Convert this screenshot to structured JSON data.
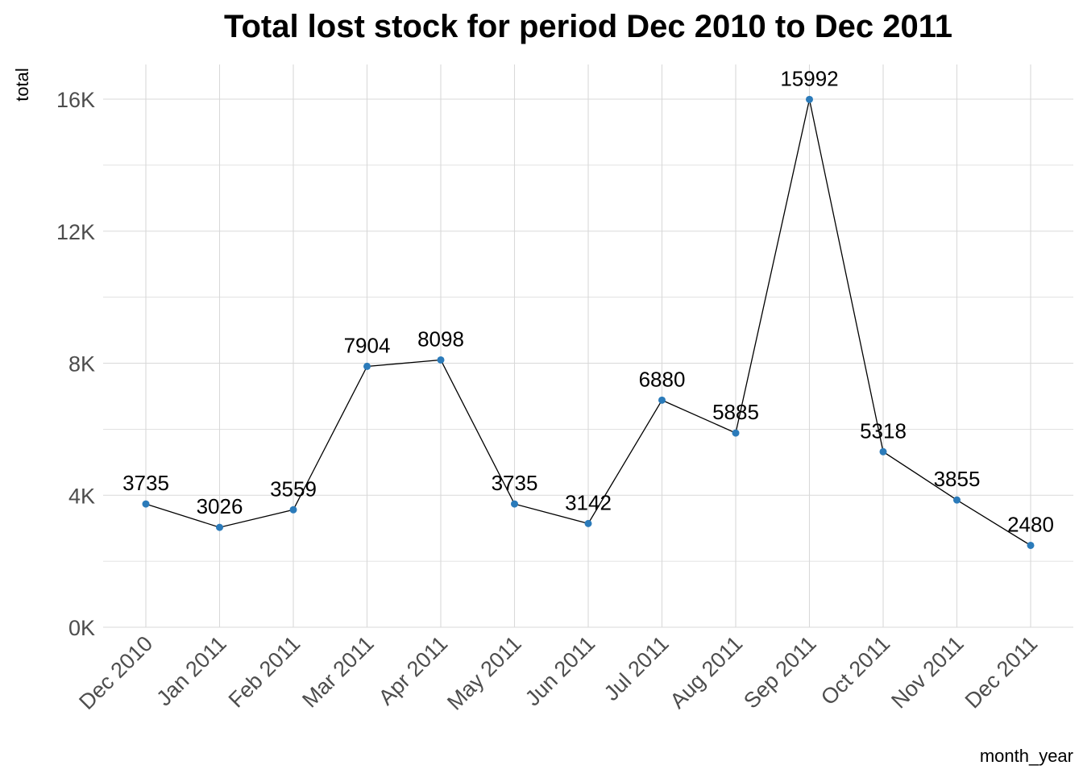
{
  "chart_data": {
    "type": "line",
    "title": "Total lost stock for period Dec 2010 to Dec 2011",
    "xlabel": "month_year",
    "ylabel": "total",
    "categories": [
      "Dec 2010",
      "Jan 2011",
      "Feb 2011",
      "Mar 2011",
      "Apr 2011",
      "May 2011",
      "Jun 2011",
      "Jul 2011",
      "Aug 2011",
      "Sep 2011",
      "Oct 2011",
      "Nov 2011",
      "Dec 2011"
    ],
    "values": [
      3735,
      3026,
      3559,
      7904,
      8098,
      3735,
      3142,
      6880,
      5885,
      15992,
      5318,
      3855,
      2480
    ],
    "ylim": [
      0,
      17000
    ],
    "y_ticks": [
      0,
      4000,
      8000,
      12000,
      16000
    ],
    "y_tick_labels": [
      "0K",
      "4K",
      "8K",
      "12K",
      "16K"
    ],
    "grid": true,
    "point_color": "#2b7bba",
    "line_color": "#000000",
    "grid_color": "#d9d9d9"
  }
}
